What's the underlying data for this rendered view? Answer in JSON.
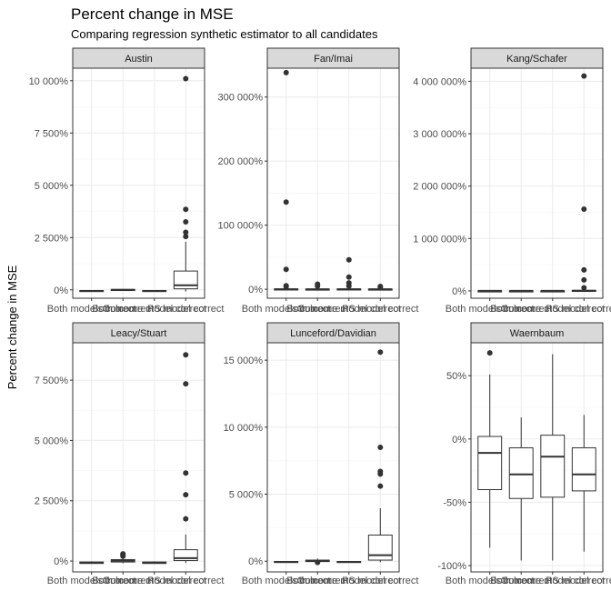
{
  "chart_data": {
    "type": "boxplot",
    "title": "Percent change in MSE",
    "subtitle": "Comparing regression synthetic estimator to all candidates",
    "xlabel": "",
    "ylabel": "Percent change in MSE",
    "categories": [
      "Both models correct",
      "Both incorrect",
      "Outcome model correct",
      "PS model correct"
    ],
    "category_display": [
      "Both models correct",
      "Both incorrect",
      "Outcome model correct",
      "PS model correct"
    ],
    "grid": true,
    "facets": [
      {
        "name": "Austin",
        "ylim": [
          -400,
          10600
        ],
        "yticks": [
          0,
          2500,
          5000,
          7500,
          10000
        ],
        "yticklabels": [
          "0%",
          "2 500%",
          "5 000%",
          "7 500%",
          "10 000%"
        ],
        "boxes": [
          {
            "q1": -70,
            "median": -50,
            "q3": -30,
            "whisker_low": -90,
            "whisker_high": -10,
            "outliers": []
          },
          {
            "q1": -20,
            "median": 0,
            "q3": 20,
            "whisker_low": -40,
            "whisker_high": 40,
            "outliers": []
          },
          {
            "q1": -70,
            "median": -50,
            "q3": -30,
            "whisker_low": -90,
            "whisker_high": -10,
            "outliers": []
          },
          {
            "q1": 50,
            "median": 220,
            "q3": 900,
            "whisker_low": -80,
            "whisker_high": 2300,
            "outliers": [
              2550,
              2750,
              3250,
              3850,
              10100
            ]
          }
        ]
      },
      {
        "name": "Fan/Imai",
        "ylim": [
          -14000,
          345000
        ],
        "yticks": [
          0,
          100000,
          200000,
          300000
        ],
        "yticklabels": [
          "0%",
          "100 000%",
          "200 000%",
          "300 000%"
        ],
        "boxes": [
          {
            "q1": -80,
            "median": 0,
            "q3": 500,
            "whisker_low": -95,
            "whisker_high": 2500,
            "outliers": [
              4000,
              5500,
              31000,
              136000,
              338000
            ]
          },
          {
            "q1": -50,
            "median": 0,
            "q3": 300,
            "whisker_low": -90,
            "whisker_high": 1500,
            "outliers": [
              5000,
              8000
            ]
          },
          {
            "q1": -80,
            "median": 0,
            "q3": 500,
            "whisker_low": -95,
            "whisker_high": 2000,
            "outliers": [
              5000,
              10000,
              19000,
              46000
            ]
          },
          {
            "q1": -60,
            "median": 0,
            "q3": 300,
            "whisker_low": -90,
            "whisker_high": 1000,
            "outliers": [
              3000,
              4500
            ]
          }
        ]
      },
      {
        "name": "Kang/Schafer",
        "ylim": [
          -140000,
          4250000
        ],
        "yticks": [
          0,
          1000000,
          2000000,
          3000000,
          4000000
        ],
        "yticklabels": [
          "0%",
          "1 000 000%",
          "2 000 000%",
          "3 000 000%",
          "4 000 000%"
        ],
        "boxes": [
          {
            "q1": -80,
            "median": 0,
            "q3": 500,
            "whisker_low": -95,
            "whisker_high": 3000,
            "outliers": []
          },
          {
            "q1": -80,
            "median": 0,
            "q3": 500,
            "whisker_low": -95,
            "whisker_high": 3000,
            "outliers": []
          },
          {
            "q1": -80,
            "median": 0,
            "q3": 500,
            "whisker_low": -95,
            "whisker_high": 3000,
            "outliers": []
          },
          {
            "q1": 0,
            "median": 3000,
            "q3": 10000,
            "whisker_low": -90,
            "whisker_high": 30000,
            "outliers": [
              60000,
              210000,
              400000,
              1560000,
              4100000
            ]
          }
        ]
      },
      {
        "name": "Leacy/Stuart",
        "ylim": [
          -450,
          9050
        ],
        "yticks": [
          0,
          2500,
          5000,
          7500
        ],
        "yticklabels": [
          "0%",
          "2 500%",
          "5 000%",
          "7 500%"
        ],
        "boxes": [
          {
            "q1": -100,
            "median": -70,
            "q3": -40,
            "whisker_low": -110,
            "whisker_high": -10,
            "outliers": []
          },
          {
            "q1": -40,
            "median": 10,
            "q3": 60,
            "whisker_low": -90,
            "whisker_high": 150,
            "outliers": [
              200,
              250,
              300
            ]
          },
          {
            "q1": -100,
            "median": -70,
            "q3": -40,
            "whisker_low": -110,
            "whisker_high": -10,
            "outliers": []
          },
          {
            "q1": 20,
            "median": 120,
            "q3": 470,
            "whisker_low": -80,
            "whisker_high": 1100,
            "outliers": [
              1750,
              2750,
              3650,
              7350,
              8550
            ]
          }
        ]
      },
      {
        "name": "Lunceford/Davidian",
        "ylim": [
          -800,
          16300
        ],
        "yticks": [
          0,
          5000,
          10000,
          15000
        ],
        "yticklabels": [
          "0%",
          "5 000%",
          "10 000%",
          "15 000%"
        ],
        "boxes": [
          {
            "q1": -80,
            "median": -50,
            "q3": -20,
            "whisker_low": -95,
            "whisker_high": -5,
            "outliers": []
          },
          {
            "q1": -30,
            "median": 20,
            "q3": 80,
            "whisker_low": -90,
            "whisker_high": 200,
            "outliers": [
              -100
            ]
          },
          {
            "q1": -80,
            "median": -50,
            "q3": -20,
            "whisker_low": -95,
            "whisker_high": -5,
            "outliers": []
          },
          {
            "q1": 80,
            "median": 450,
            "q3": 1950,
            "whisker_low": -70,
            "whisker_high": 3950,
            "outliers": [
              5600,
              6500,
              6700,
              8500,
              15600
            ]
          }
        ]
      },
      {
        "name": "Waernbaum",
        "ylim": [
          -105,
          76
        ],
        "yticks": [
          -100,
          -50,
          0,
          50
        ],
        "yticklabels": [
          "-100%",
          "-50%",
          "0%",
          "50%"
        ],
        "boxes": [
          {
            "q1": -40,
            "median": -11,
            "q3": 2,
            "whisker_low": -86,
            "whisker_high": 51,
            "outliers": [
              68
            ]
          },
          {
            "q1": -47,
            "median": -28,
            "q3": -7,
            "whisker_low": -96,
            "whisker_high": 17,
            "outliers": []
          },
          {
            "q1": -46,
            "median": -14,
            "q3": 3,
            "whisker_low": -96,
            "whisker_high": 67,
            "outliers": []
          },
          {
            "q1": -41,
            "median": -28,
            "q3": -7,
            "whisker_low": -89,
            "whisker_high": 19,
            "outliers": []
          }
        ]
      }
    ]
  },
  "colors": {
    "strip": "#d9d9d9",
    "strip_border": "#333333",
    "panel_border": "#333333",
    "grid_major": "#ebebeb",
    "grid_minor": "#f5f5f5",
    "box_fill": "#ffffff",
    "box_line": "#333333",
    "outlier": "#333333",
    "tick_text": "#4d4d4d"
  }
}
